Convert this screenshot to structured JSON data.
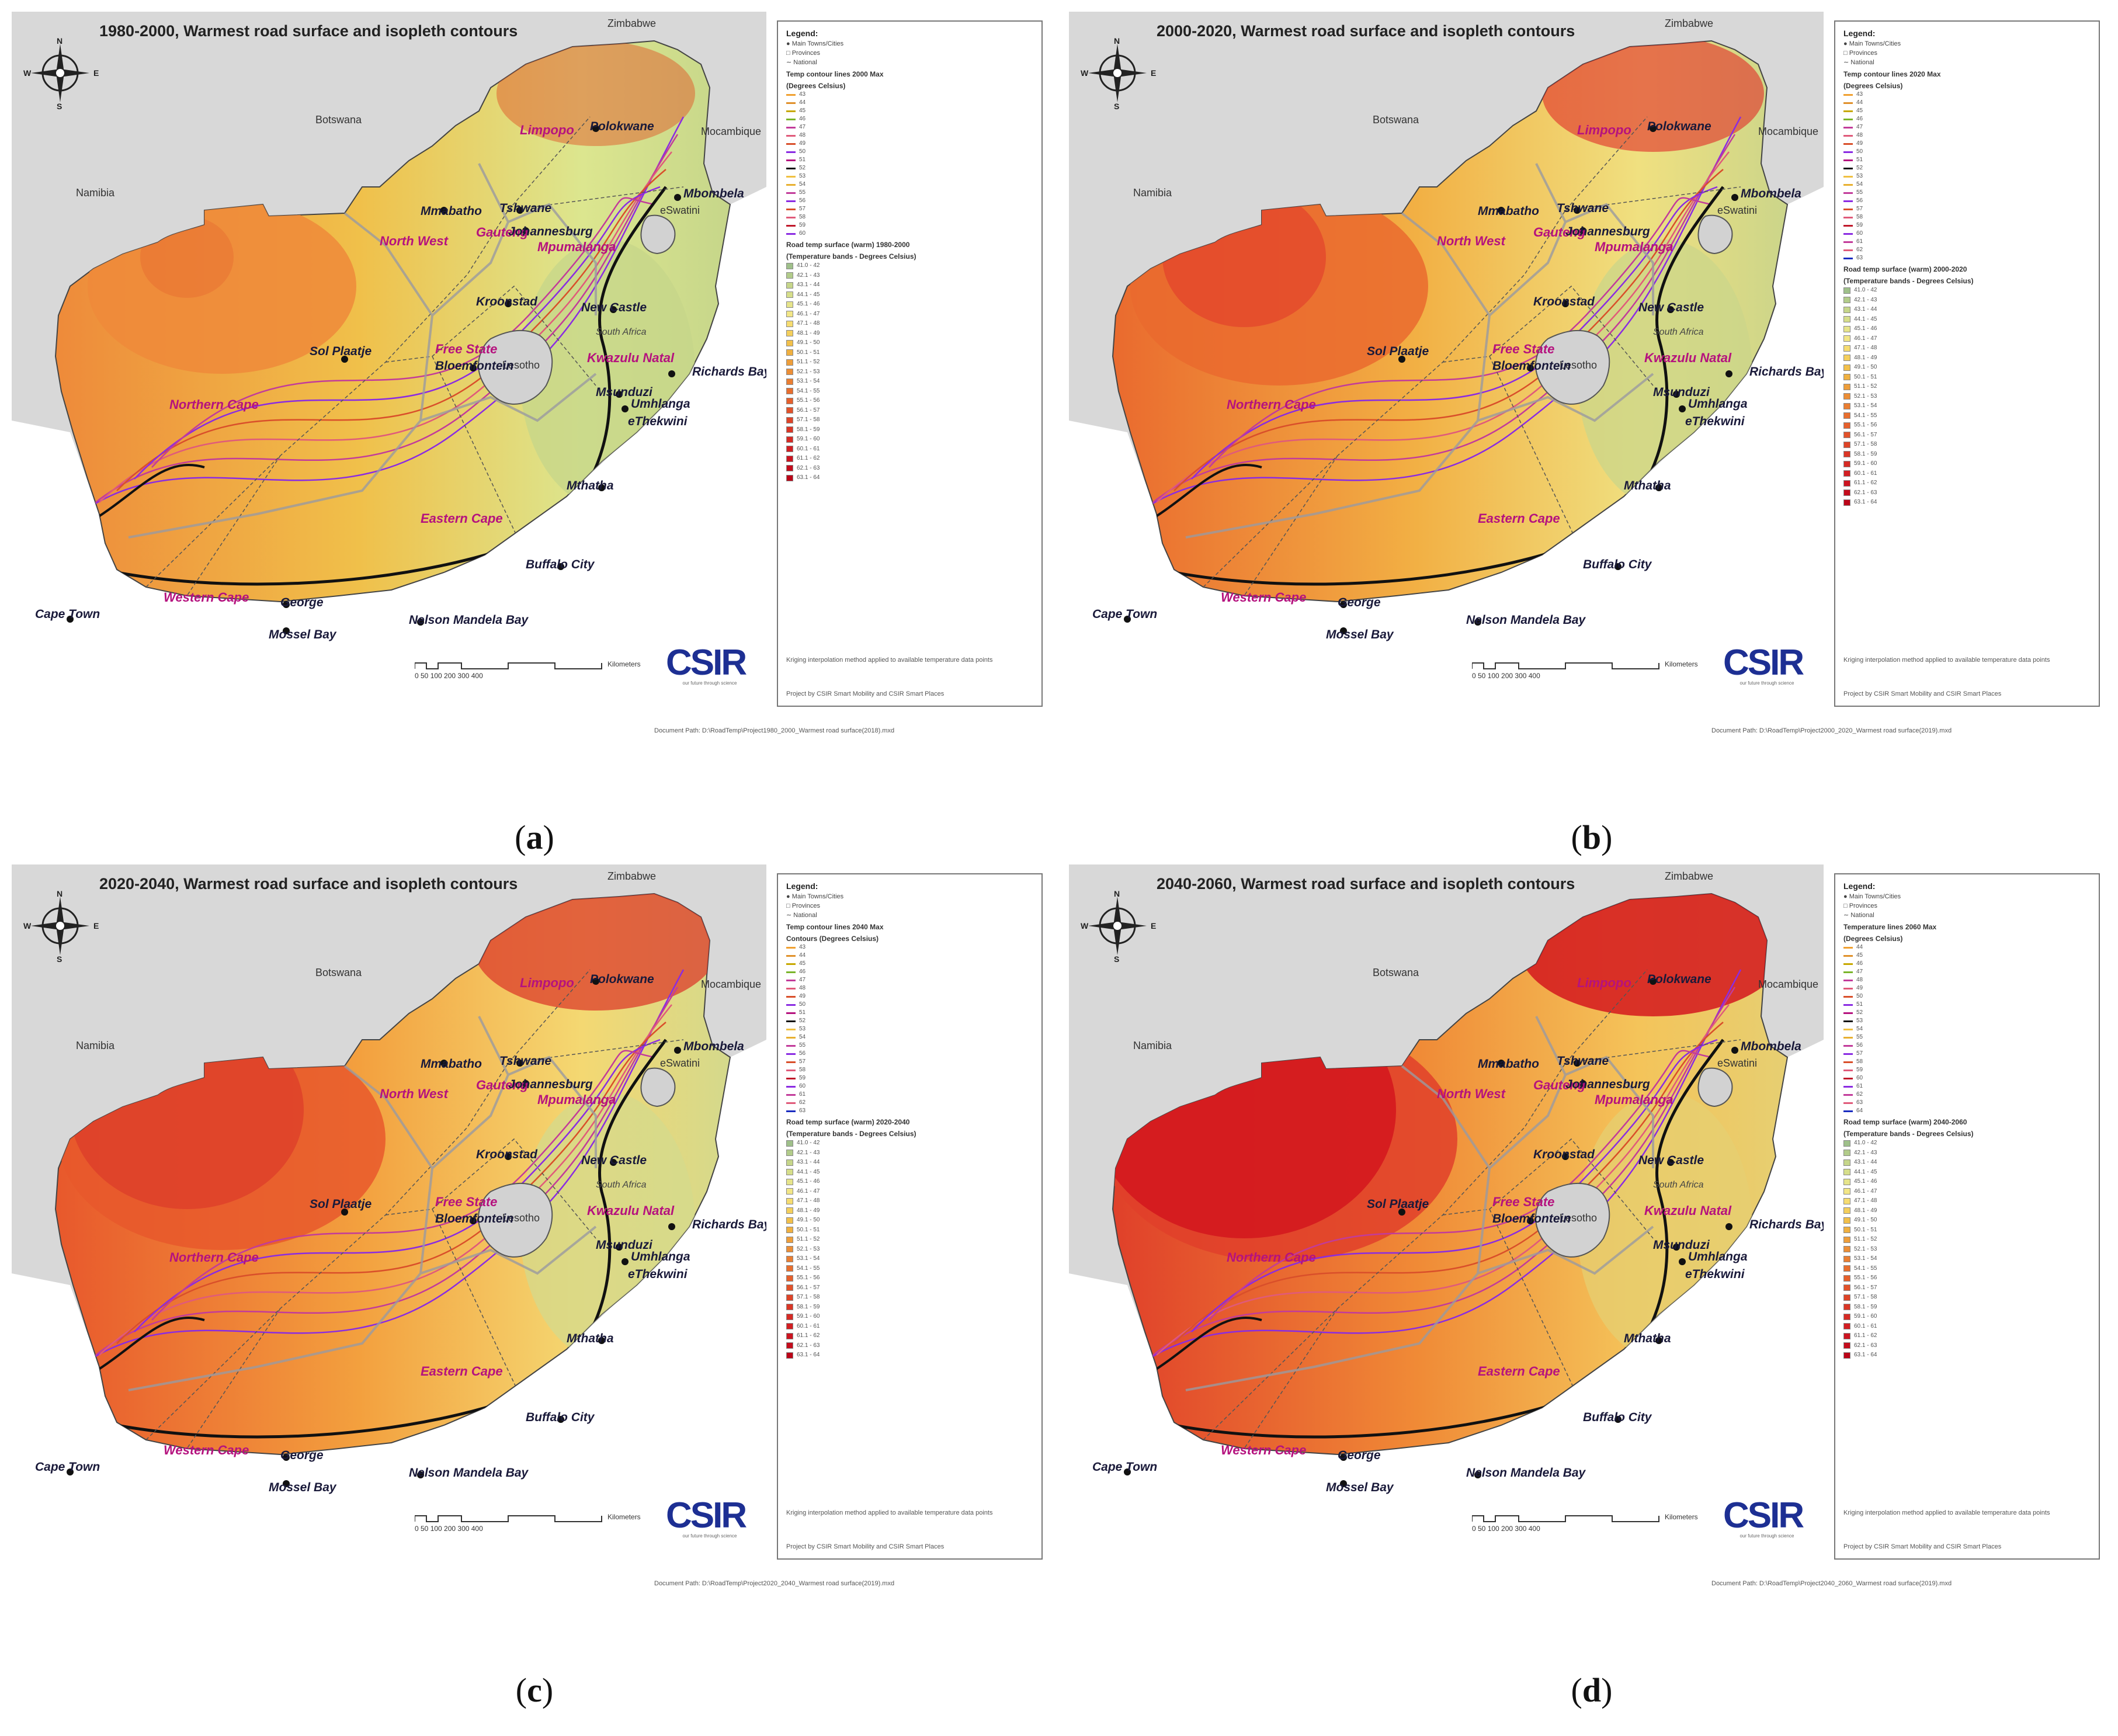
{
  "colors": {
    "outside": "#d8d8d8",
    "ocean": "#ffffff",
    "lesotho": "#d2d2d2",
    "brand": "#1d2f93",
    "province_label": "#b5127e",
    "contour_primary": "#8a2be2",
    "contour_bold": "#111111"
  },
  "panels": [
    {
      "caption_letter": "a",
      "title": "1980-2000, Warmest road surface and isopleth contours",
      "legend": {
        "heading": "Legend:",
        "items": [
          "Main Towns/Cities",
          "Provinces",
          "National"
        ],
        "contour_heading": "Temp contour lines 2000 Max",
        "contour_unit": "(Degrees Celsius)",
        "contour_values": [
          "43",
          "44",
          "45",
          "46",
          "47",
          "48",
          "49",
          "50",
          "51",
          "52",
          "53",
          "54",
          "55",
          "56",
          "57",
          "58",
          "59",
          "60"
        ],
        "band_heading": "Road temp surface (warm) 1980-2000",
        "band_unit": "(Temperature bands - Degrees Celsius)",
        "bands": [
          "41.0 - 42",
          "42.1 - 43",
          "43.1 - 44",
          "44.1 - 45",
          "45.1 - 46",
          "46.1 - 47",
          "47.1 - 48",
          "48.1 - 49",
          "49.1 - 50",
          "50.1 - 51",
          "51.1 - 52",
          "52.1 - 53",
          "53.1 - 54",
          "54.1 - 55",
          "55.1 - 56",
          "56.1 - 57",
          "57.1 - 58",
          "58.1 - 59",
          "59.1 - 60",
          "60.1 - 61",
          "61.1 - 62",
          "62.1 - 63",
          "63.1 - 64"
        ],
        "note": "Kriging interpolation method applied to available temperature data points",
        "credit": "Project by CSIR Smart Mobility and CSIR Smart Places"
      },
      "doc_path": "Document Path: D:\\RoadTemp\\Project1980_2000_Warmest road surface(2018).mxd"
    },
    {
      "caption_letter": "b",
      "title": "2000-2020, Warmest road surface and isopleth contours",
      "legend": {
        "heading": "Legend:",
        "items": [
          "Main Towns/Cities",
          "Provinces",
          "National"
        ],
        "contour_heading": "Temp contour lines 2020 Max",
        "contour_unit": "(Degrees Celsius)",
        "contour_values": [
          "43",
          "44",
          "45",
          "46",
          "47",
          "48",
          "49",
          "50",
          "51",
          "52",
          "53",
          "54",
          "55",
          "56",
          "57",
          "58",
          "59",
          "60",
          "61",
          "62",
          "63"
        ],
        "band_heading": "Road temp surface (warm) 2000-2020",
        "band_unit": "(Temperature bands - Degrees Celsius)",
        "bands": [
          "41.0 - 42",
          "42.1 - 43",
          "43.1 - 44",
          "44.1 - 45",
          "45.1 - 46",
          "46.1 - 47",
          "47.1 - 48",
          "48.1 - 49",
          "49.1 - 50",
          "50.1 - 51",
          "51.1 - 52",
          "52.1 - 53",
          "53.1 - 54",
          "54.1 - 55",
          "55.1 - 56",
          "56.1 - 57",
          "57.1 - 58",
          "58.1 - 59",
          "59.1 - 60",
          "60.1 - 61",
          "61.1 - 62",
          "62.1 - 63",
          "63.1 - 64"
        ],
        "note": "Kriging interpolation method applied to available temperature data points",
        "credit": "Project by CSIR Smart Mobility and CSIR Smart Places"
      },
      "doc_path": "Document Path: D:\\RoadTemp\\Project2000_2020_Warmest road surface(2019).mxd"
    },
    {
      "caption_letter": "c",
      "title": "2020-2040, Warmest road surface and isopleth contours",
      "legend": {
        "heading": "Legend:",
        "items": [
          "Main Towns/Cities",
          "Provinces",
          "National"
        ],
        "contour_heading": "Temp contour lines 2040 Max",
        "contour_unit": "Contours (Degrees Celsius)",
        "contour_values": [
          "43",
          "44",
          "45",
          "46",
          "47",
          "48",
          "49",
          "50",
          "51",
          "52",
          "53",
          "54",
          "55",
          "56",
          "57",
          "58",
          "59",
          "60",
          "61",
          "62",
          "63"
        ],
        "band_heading": "Road temp surface (warm) 2020-2040",
        "band_unit": "(Temperature bands - Degrees Celsius)",
        "bands": [
          "41.0 - 42",
          "42.1 - 43",
          "43.1 - 44",
          "44.1 - 45",
          "45.1 - 46",
          "46.1 - 47",
          "47.1 - 48",
          "48.1 - 49",
          "49.1 - 50",
          "50.1 - 51",
          "51.1 - 52",
          "52.1 - 53",
          "53.1 - 54",
          "54.1 - 55",
          "55.1 - 56",
          "56.1 - 57",
          "57.1 - 58",
          "58.1 - 59",
          "59.1 - 60",
          "60.1 - 61",
          "61.1 - 62",
          "62.1 - 63",
          "63.1 - 64"
        ],
        "note": "Kriging interpolation method applied to available temperature data points",
        "credit": "Project by CSIR Smart Mobility and CSIR Smart Places"
      },
      "doc_path": "Document Path: D:\\RoadTemp\\Project2020_2040_Warmest road surface(2019).mxd"
    },
    {
      "caption_letter": "d",
      "title": "2040-2060, Warmest road surface and isopleth contours",
      "legend": {
        "heading": "Legend:",
        "items": [
          "Main Towns/Cities",
          "Provinces",
          "National"
        ],
        "contour_heading": "Temperature lines 2060 Max",
        "contour_unit": "(Degrees Celsius)",
        "contour_values": [
          "44",
          "45",
          "46",
          "47",
          "48",
          "49",
          "50",
          "51",
          "52",
          "53",
          "54",
          "55",
          "56",
          "57",
          "58",
          "59",
          "60",
          "61",
          "62",
          "63",
          "64"
        ],
        "band_heading": "Road temp surface (warm) 2040-2060",
        "band_unit": "(Temperature bands - Degrees Celsius)",
        "bands": [
          "41.0 - 42",
          "42.1 - 43",
          "43.1 - 44",
          "44.1 - 45",
          "45.1 - 46",
          "46.1 - 47",
          "47.1 - 48",
          "48.1 - 49",
          "49.1 - 50",
          "50.1 - 51",
          "51.1 - 52",
          "52.1 - 53",
          "53.1 - 54",
          "54.1 - 55",
          "55.1 - 56",
          "56.1 - 57",
          "57.1 - 58",
          "58.1 - 59",
          "59.1 - 60",
          "60.1 - 61",
          "61.1 - 62",
          "62.1 - 63",
          "63.1 - 64"
        ],
        "note": "Kriging interpolation method applied to available temperature data points",
        "credit": "Project by CSIR Smart Mobility and CSIR Smart Places"
      },
      "doc_path": "Document Path: D:\\RoadTemp\\Project2040_2060_Warmest road surface(2019).mxd"
    }
  ],
  "map_labels": {
    "countries": {
      "zimbabwe": "Zimbabwe",
      "botswana": "Botswana",
      "mocambique": "Mocambique",
      "namibia": "Namibia",
      "eswatini": "eSwatini",
      "lesotho": "Lesotho",
      "south_africa": "South Africa"
    },
    "provinces": {
      "limpopo": "Limpopo",
      "north_west": "North West",
      "gauteng": "Gauteng",
      "mpumalanga": "Mpumalanga",
      "free_state": "Free State",
      "kwazulu_natal": "Kwazulu Natal",
      "northern_cape": "Northern Cape",
      "eastern_cape": "Eastern Cape",
      "western_cape": "Western Cape"
    },
    "cities": {
      "polokwane": "Polokwane",
      "mmabatho": "Mmabatho",
      "tshwane": "Tshwane",
      "mbombela": "Mbombela",
      "johannesburg": "Johannesburg",
      "kroonstad": "Kroonstad",
      "new_castle": "New Castle",
      "sol_plaatje": "Sol Plaatje",
      "bloemfontein": "Bloemfontein",
      "richards_bay": "Richards Bay",
      "msunduzi": "Msunduzi",
      "umhlanga": "Umhlanga",
      "ethekwini": "eThekwini",
      "mthatha": "Mthatha",
      "buffalo_city": "Buffalo City",
      "cape_town": "Cape Town",
      "george": "George",
      "mossel_bay": "Mossel Bay",
      "nelson_mandela_bay": "Nelson Mandela Bay"
    }
  },
  "compass": {
    "n": "N",
    "s": "S",
    "w": "W",
    "e": "E"
  },
  "scale": {
    "ticks": "0   50  100        200        300        400",
    "unit": "Kilometers"
  },
  "logo": {
    "text": "CSIR",
    "tagline": "our future through science"
  }
}
